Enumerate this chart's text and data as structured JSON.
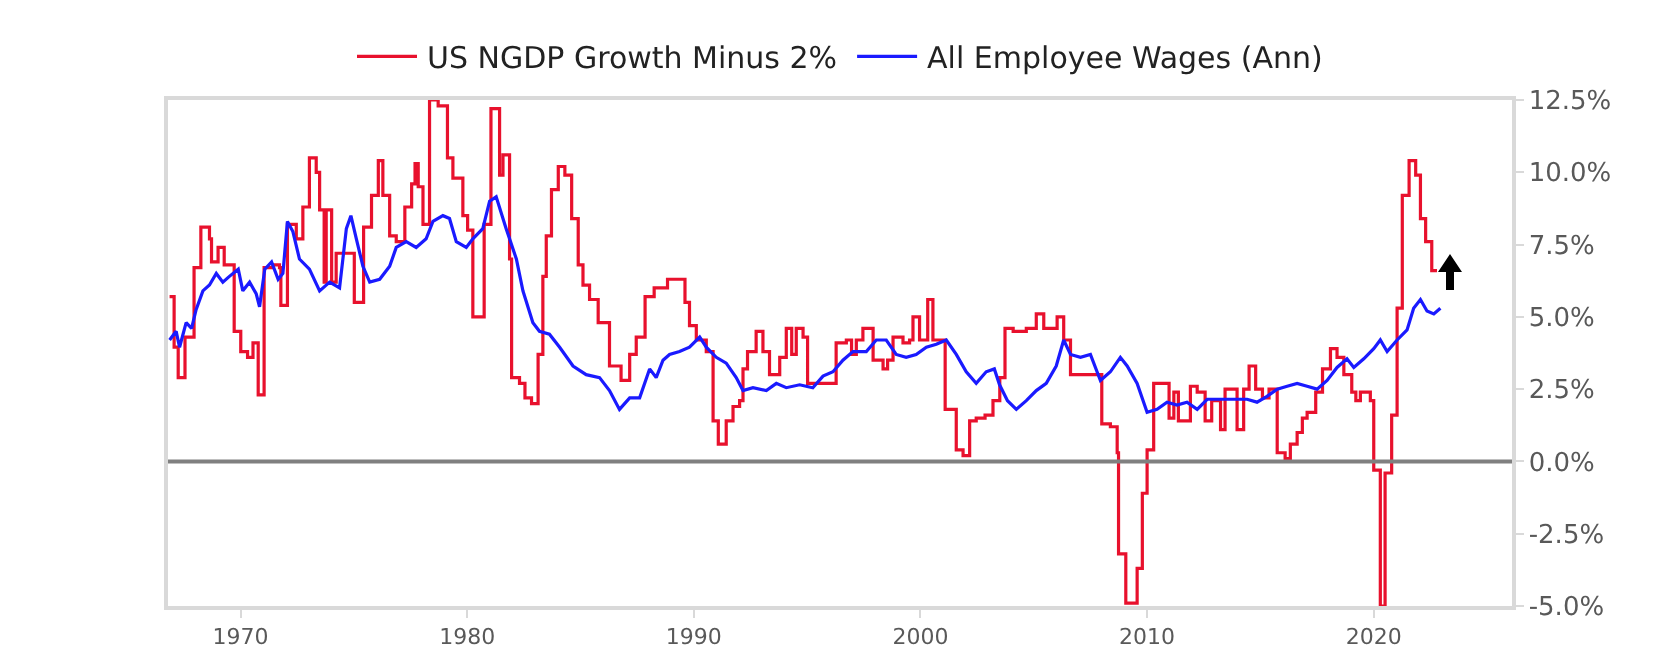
{
  "chart_data": {
    "type": "line",
    "legend": "top",
    "grid": false,
    "xlim": [
      1966.8,
      2026.1
    ],
    "xticks": [
      1970,
      1980,
      1990,
      2000,
      2010,
      2020
    ],
    "ylim": [
      -5,
      12.5
    ],
    "yticks": [
      {
        "value": -5,
        "label": "-5.0%"
      },
      {
        "value": -2.5,
        "label": "-2.5%"
      },
      {
        "value": 0,
        "label": "0.0%"
      },
      {
        "value": 2.5,
        "label": "2.5%"
      },
      {
        "value": 5,
        "label": "5.0%"
      },
      {
        "value": 7.5,
        "label": "7.5%"
      },
      {
        "value": 10,
        "label": "10.0%"
      },
      {
        "value": 12.5,
        "label": "12.5%"
      }
    ],
    "ref_lines": [
      {
        "axis": "y",
        "value": 0,
        "color": "#808080"
      }
    ],
    "series": [
      {
        "name": "US NGDP Growth Minus 2%",
        "type": "step",
        "color": "#e8112d",
        "x": [
          1966.87,
          1967.07,
          1967.25,
          1967.55,
          1967.95,
          1968.25,
          1968.63,
          1968.72,
          1969.01,
          1969.28,
          1969.72,
          1970.01,
          1970.31,
          1970.55,
          1970.78,
          1971.04,
          1971.43,
          1971.72,
          1971.78,
          1972.07,
          1972.46,
          1972.75,
          1973.04,
          1973.34,
          1973.49,
          1973.69,
          1973.78,
          1974.02,
          1974.22,
          1975.02,
          1975.43,
          1975.78,
          1976.08,
          1976.28,
          1976.58,
          1976.87,
          1977.25,
          1977.55,
          1977.7,
          1977.84,
          1978.05,
          1978.34,
          1978.72,
          1979.13,
          1979.37,
          1979.81,
          1980.02,
          1980.25,
          1980.75,
          1981.05,
          1981.43,
          1981.58,
          1981.87,
          1981.96,
          1982.31,
          1982.55,
          1982.84,
          1983.13,
          1983.34,
          1983.49,
          1983.72,
          1984.02,
          1984.31,
          1984.61,
          1984.9,
          1985.11,
          1985.4,
          1985.78,
          1986.28,
          1986.79,
          1987.17,
          1987.46,
          1987.85,
          1988.25,
          1988.84,
          1989.61,
          1989.81,
          1990.11,
          1990.55,
          1990.85,
          1991.08,
          1991.43,
          1991.73,
          1992.02,
          1992.17,
          1992.37,
          1992.75,
          1993.05,
          1993.34,
          1993.79,
          1994.08,
          1994.32,
          1994.52,
          1994.82,
          1995.02,
          1996.28,
          1996.73,
          1996.96,
          1997.17,
          1997.46,
          1997.91,
          1998.35,
          1998.55,
          1998.79,
          1999.23,
          1999.52,
          1999.67,
          1999.96,
          2000.32,
          2000.55,
          2001.09,
          2001.58,
          2001.88,
          2002.17,
          2002.46,
          2002.85,
          2003.2,
          2003.5,
          2003.73,
          2004.09,
          2004.67,
          2005.11,
          2005.44,
          2006.03,
          2006.32,
          2006.62,
          2008.0,
          2008.38,
          2008.68,
          2008.74,
          2009.06,
          2009.56,
          2009.79,
          2010.0,
          2010.29,
          2010.97,
          2011.18,
          2011.38,
          2011.91,
          2012.21,
          2012.56,
          2012.85,
          2013.24,
          2013.44,
          2013.97,
          2014.26,
          2014.5,
          2014.79,
          2015.09,
          2015.38,
          2015.74,
          2016.09,
          2016.32,
          2016.62,
          2016.85,
          2017.06,
          2017.44,
          2017.74,
          2018.09,
          2018.38,
          2018.68,
          2019.03,
          2019.21,
          2019.41,
          2019.85,
          2020.0,
          2020.29,
          2020.5,
          2020.79,
          2021.03,
          2021.26,
          2021.56,
          2021.85,
          2022.06,
          2022.29,
          2022.56,
          2022.79
        ],
        "values": [
          5.7,
          3.95,
          2.9,
          4.3,
          6.7,
          8.1,
          7.7,
          6.9,
          7.4,
          6.8,
          4.5,
          3.8,
          3.6,
          4.1,
          2.3,
          6.7,
          6.8,
          6.7,
          5.4,
          8.2,
          7.7,
          8.8,
          10.5,
          10.0,
          8.7,
          6.2,
          8.7,
          6.2,
          7.2,
          5.5,
          8.1,
          9.2,
          10.4,
          9.2,
          7.8,
          7.6,
          8.8,
          9.6,
          10.3,
          9.5,
          8.2,
          12.5,
          12.3,
          10.5,
          9.8,
          8.5,
          8.0,
          5.0,
          8.2,
          12.2,
          9.9,
          10.6,
          7.0,
          2.9,
          2.7,
          2.2,
          2.0,
          3.7,
          6.4,
          7.8,
          9.4,
          10.2,
          9.9,
          8.4,
          6.8,
          6.1,
          5.6,
          4.8,
          3.3,
          2.8,
          3.7,
          4.3,
          5.7,
          6.0,
          6.3,
          5.5,
          4.7,
          4.2,
          3.8,
          1.4,
          0.6,
          1.4,
          1.9,
          2.1,
          3.2,
          3.8,
          4.5,
          3.8,
          3.0,
          3.6,
          4.6,
          3.7,
          4.6,
          4.3,
          2.7,
          4.1,
          4.2,
          3.7,
          4.2,
          4.6,
          3.5,
          3.2,
          3.5,
          4.3,
          4.1,
          4.2,
          5.0,
          4.2,
          5.6,
          4.2,
          1.8,
          0.4,
          0.2,
          1.4,
          1.5,
          1.6,
          2.1,
          2.9,
          4.6,
          4.5,
          4.6,
          5.1,
          4.6,
          5.0,
          4.2,
          3.0,
          1.3,
          1.2,
          0.3,
          -3.2,
          -4.9,
          -3.7,
          -1.1,
          0.4,
          2.7,
          1.5,
          2.4,
          1.4,
          2.6,
          2.4,
          1.4,
          2.1,
          1.1,
          2.5,
          1.1,
          2.5,
          3.3,
          2.5,
          2.2,
          2.5,
          0.3,
          0.1,
          0.6,
          1.0,
          1.5,
          1.7,
          2.4,
          3.2,
          3.9,
          3.6,
          3.0,
          2.4,
          2.1,
          2.4,
          2.1,
          -0.3,
          -5,
          -0.4,
          1.6,
          5.3,
          9.2,
          10.4,
          9.9,
          8.4,
          7.6,
          6.6,
          6.6
        ]
      },
      {
        "name": "All Employee Wages (Ann)",
        "color": "#1a1aff",
        "x": [
          1966.87,
          1967.16,
          1967.31,
          1967.6,
          1967.84,
          1968.04,
          1968.34,
          1968.63,
          1968.93,
          1969.22,
          1969.51,
          1969.9,
          1970.1,
          1970.4,
          1970.69,
          1970.84,
          1971.07,
          1971.37,
          1971.66,
          1971.87,
          1972.07,
          1972.31,
          1972.6,
          1973.04,
          1973.49,
          1973.93,
          1974.37,
          1974.67,
          1974.87,
          1975.11,
          1975.4,
          1975.7,
          1976.14,
          1976.58,
          1976.87,
          1977.31,
          1977.75,
          1978.19,
          1978.49,
          1978.93,
          1979.22,
          1979.52,
          1979.96,
          1980.25,
          1980.69,
          1980.99,
          1981.28,
          1981.72,
          1982.17,
          1982.46,
          1982.9,
          1983.19,
          1983.63,
          1984.08,
          1984.67,
          1985.25,
          1985.84,
          1986.28,
          1986.72,
          1987.17,
          1987.61,
          1988.05,
          1988.34,
          1988.64,
          1988.93,
          1989.37,
          1989.81,
          1990.26,
          1990.55,
          1990.99,
          1991.43,
          1991.87,
          1992.17,
          1992.61,
          1993.2,
          1993.64,
          1994.08,
          1994.67,
          1995.25,
          1995.7,
          1996.14,
          1996.58,
          1997.02,
          1997.61,
          1998.05,
          1998.49,
          1998.93,
          1999.37,
          1999.81,
          2000.26,
          2000.7,
          2001.14,
          2001.58,
          2002.02,
          2002.46,
          2002.9,
          2003.26,
          2003.49,
          2003.84,
          2004.23,
          2004.67,
          2005.11,
          2005.55,
          2005.99,
          2006.32,
          2006.62,
          2007.06,
          2007.5,
          2007.94,
          2008.38,
          2008.82,
          2009.12,
          2009.56,
          2010.0,
          2010.44,
          2010.88,
          2011.32,
          2011.76,
          2012.21,
          2012.65,
          2013.09,
          2013.53,
          2013.97,
          2014.41,
          2014.85,
          2015.29,
          2015.74,
          2016.18,
          2016.62,
          2017.06,
          2017.5,
          2017.94,
          2018.38,
          2018.82,
          2019.12,
          2019.56,
          2020.0,
          2020.29,
          2020.59,
          2021.03,
          2021.47,
          2021.76,
          2022.06,
          2022.35,
          2022.65,
          2022.94
        ],
        "values": [
          4.2,
          4.5,
          3.95,
          4.8,
          4.6,
          5.25,
          5.9,
          6.1,
          6.5,
          6.2,
          6.4,
          6.65,
          5.9,
          6.2,
          5.8,
          5.35,
          6.65,
          6.9,
          6.3,
          6.5,
          8.3,
          7.95,
          7.0,
          6.65,
          5.9,
          6.2,
          6.0,
          8.05,
          8.5,
          7.7,
          6.75,
          6.2,
          6.3,
          6.75,
          7.4,
          7.6,
          7.4,
          7.7,
          8.3,
          8.5,
          8.4,
          7.6,
          7.4,
          7.7,
          8.05,
          9.0,
          9.15,
          8.05,
          7.0,
          5.9,
          4.8,
          4.5,
          4.4,
          3.95,
          3.3,
          3.0,
          2.9,
          2.45,
          1.8,
          2.2,
          2.2,
          3.2,
          2.9,
          3.5,
          3.7,
          3.8,
          3.95,
          4.3,
          3.95,
          3.6,
          3.4,
          2.9,
          2.45,
          2.55,
          2.45,
          2.7,
          2.55,
          2.65,
          2.55,
          2.95,
          3.1,
          3.5,
          3.8,
          3.8,
          4.2,
          4.2,
          3.7,
          3.6,
          3.7,
          3.95,
          4.05,
          4.2,
          3.7,
          3.1,
          2.7,
          3.1,
          3.2,
          2.65,
          2.1,
          1.8,
          2.1,
          2.45,
          2.7,
          3.3,
          4.2,
          3.7,
          3.6,
          3.7,
          2.8,
          3.1,
          3.6,
          3.3,
          2.7,
          1.7,
          1.8,
          2.05,
          1.95,
          2.05,
          1.8,
          2.15,
          2.15,
          2.15,
          2.15,
          2.15,
          2.05,
          2.25,
          2.5,
          2.6,
          2.7,
          2.6,
          2.5,
          2.8,
          3.25,
          3.55,
          3.25,
          3.55,
          3.9,
          4.2,
          3.8,
          4.2,
          4.55,
          5.3,
          5.6,
          5.2,
          5.1,
          5.3
        ]
      }
    ]
  }
}
